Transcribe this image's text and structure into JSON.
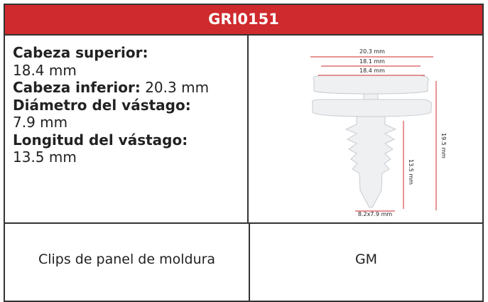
{
  "header": {
    "title": "GRI0151"
  },
  "specs": [
    {
      "label": "Cabeza superior:",
      "value": "18.4 mm"
    },
    {
      "label": "Cabeza inferior:",
      "value": "20.3 mm"
    },
    {
      "label": "Diámetro del vástago:",
      "value": "7.9 mm"
    },
    {
      "label": "Longitud del vástago:",
      "value": "13.5 mm"
    }
  ],
  "diagram": {
    "labels": [
      "20.3 mm",
      "18.1 mm",
      "18.4 mm",
      "19.5 mm",
      "13.5 mm",
      "8.2x7.9 mm"
    ]
  },
  "table": {
    "rows": [
      [
        "Clips de panel de moldura",
        "GM"
      ]
    ]
  }
}
